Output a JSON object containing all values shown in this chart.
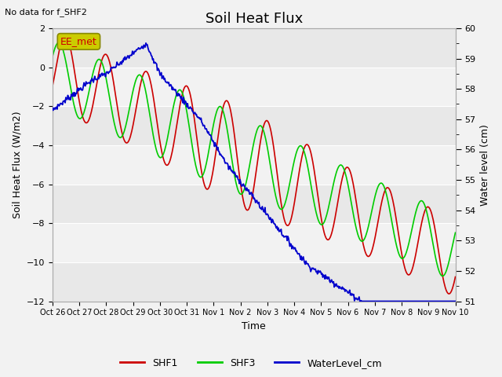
{
  "title": "Soil Heat Flux",
  "note": "No data for f_SHF2",
  "ylabel_left": "Soil Heat Flux (W/m2)",
  "ylabel_right": "Water level (cm)",
  "xlabel": "Time",
  "ylim_left": [
    -12,
    2
  ],
  "ylim_right": [
    51.0,
    60.0
  ],
  "yticks_left": [
    -12,
    -10,
    -8,
    -6,
    -4,
    -2,
    0,
    2
  ],
  "yticks_right": [
    51.0,
    52.0,
    53.0,
    54.0,
    55.0,
    56.0,
    57.0,
    58.0,
    59.0,
    60.0
  ],
  "xtick_labels": [
    "Oct 26",
    "Oct 27",
    "Oct 28",
    "Oct 29",
    "Oct 30",
    "Oct 31",
    "Nov 1",
    "Nov 2",
    "Nov 3",
    "Nov 4",
    "Nov 5",
    "Nov 6",
    "Nov 7",
    "Nov 8",
    "Nov 9",
    "Nov 10"
  ],
  "bg_color": "#f2f2f2",
  "band_colors": [
    "#e8e8e8",
    "#f2f2f2"
  ],
  "shf1_color": "#cc0000",
  "shf3_color": "#00cc00",
  "water_color": "#0000cc",
  "legend_label": "EE_met",
  "legend_box_facecolor": "#cccc00",
  "legend_box_edgecolor": "#888800",
  "title_fontsize": 13,
  "label_fontsize": 9,
  "tick_fontsize": 8,
  "n_points": 600
}
